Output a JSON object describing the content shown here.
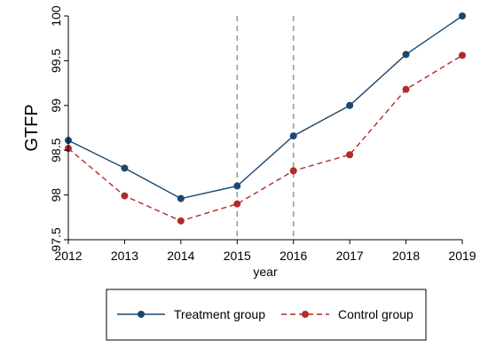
{
  "chart_data": {
    "type": "line",
    "xlabel": "year",
    "ylabel": "GTFP",
    "x": [
      2012,
      2013,
      2014,
      2015,
      2016,
      2017,
      2018,
      2019
    ],
    "x_tick_labels": [
      "2012",
      "2013",
      "2014",
      "2015",
      "2016",
      "2017",
      "2018",
      "2019"
    ],
    "y_ticks": [
      97.5,
      98,
      98.5,
      99,
      99.5,
      100
    ],
    "y_tick_labels": [
      "97.5",
      "98",
      "98.5",
      "99",
      "99.5",
      "100"
    ],
    "ylim": [
      97.5,
      100
    ],
    "xlim": [
      2012,
      2019
    ],
    "grid": false,
    "reference_lines_x": [
      2015,
      2016
    ],
    "legend_position": "bottom",
    "series": [
      {
        "name": "Treatment group",
        "values": [
          98.61,
          98.3,
          97.96,
          98.1,
          98.66,
          99.0,
          99.57,
          100.0
        ],
        "color": "#1a476f",
        "style": "solid"
      },
      {
        "name": "Control group",
        "values": [
          98.52,
          97.99,
          97.71,
          97.9,
          98.27,
          98.45,
          99.18,
          99.56
        ],
        "color": "#b22a2a",
        "style": "dashed"
      }
    ]
  }
}
